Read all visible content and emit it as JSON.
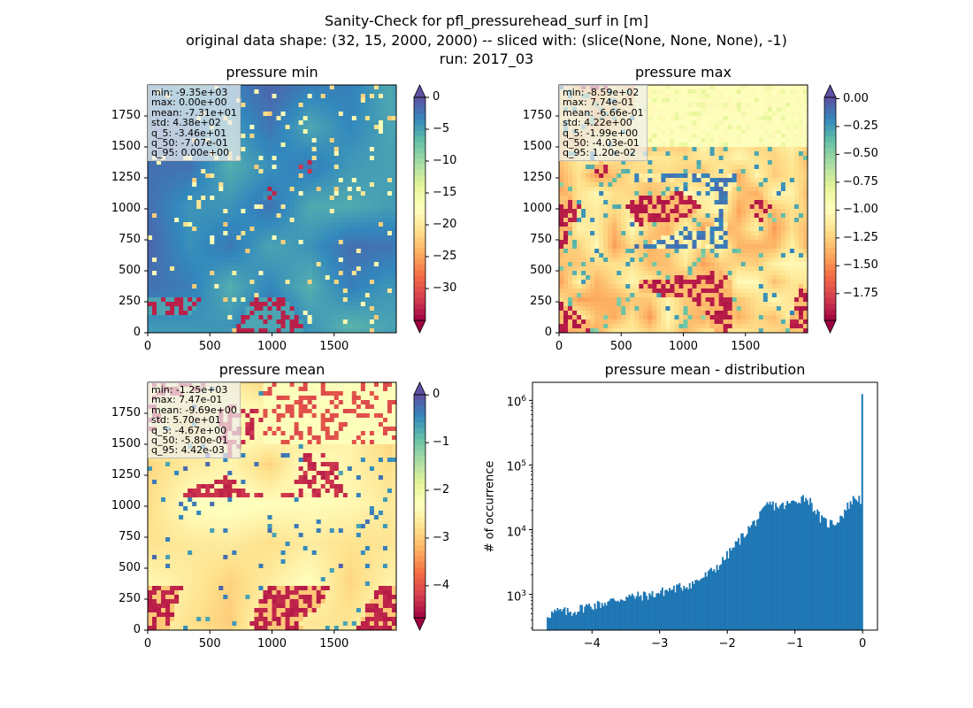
{
  "suptitle": {
    "line1": "Sanity-Check for pfl_pressurehead_surf in [m]",
    "line2": "original data shape: (32, 15, 2000, 2000) -- sliced with: (slice(None, None, None), -1)",
    "line3": "run: 2017_03"
  },
  "chart_data": [
    {
      "type": "heatmap",
      "title": "pressure min",
      "colormap": "Spectral",
      "xticks": [
        "0",
        "500",
        "1000",
        "1500"
      ],
      "yticks": [
        "0",
        "250",
        "500",
        "750",
        "1000",
        "1250",
        "1500",
        "1750"
      ],
      "xlim": [
        0,
        2000
      ],
      "ylim": [
        0,
        2000
      ],
      "colorbar": {
        "range": [
          -35,
          0
        ],
        "ticks": [
          "0",
          "−5",
          "−10",
          "−15",
          "−20",
          "−25",
          "−30"
        ],
        "extend": "both"
      },
      "stats": [
        "min: -9.35e+03",
        "max: 0.00e+00",
        "mean: -7.31e+01",
        "std: 4.38e+02",
        "q_5: -3.46e+01",
        "q_50: -7.07e-01",
        "q_95: 0.00e+00"
      ]
    },
    {
      "type": "heatmap",
      "title": "pressure max",
      "colormap": "Spectral",
      "xticks": [
        "0",
        "500",
        "1000",
        "1500"
      ],
      "yticks": [
        "0",
        "250",
        "500",
        "750",
        "1000",
        "1250",
        "1500",
        "1750"
      ],
      "xlim": [
        0,
        2000
      ],
      "ylim": [
        0,
        2000
      ],
      "colorbar": {
        "range": [
          -1.99,
          0.012
        ],
        "ticks": [
          "0.00",
          "−0.25",
          "−0.50",
          "−0.75",
          "−1.00",
          "−1.25",
          "−1.50",
          "−1.75"
        ],
        "extend": "both"
      },
      "stats": [
        "min: -8.59e+02",
        "max: 7.74e-01",
        "mean: -6.66e-01",
        "std: 4.22e+00",
        "q_5: -1.99e+00",
        "q_50: -4.03e-01",
        "q_95: 1.20e-02"
      ]
    },
    {
      "type": "heatmap",
      "title": "pressure mean",
      "colormap": "Spectral",
      "xticks": [
        "0",
        "500",
        "1000",
        "1500"
      ],
      "yticks": [
        "0",
        "250",
        "500",
        "750",
        "1000",
        "1250",
        "1500",
        "1750"
      ],
      "xlim": [
        0,
        2000
      ],
      "ylim": [
        0,
        2000
      ],
      "colorbar": {
        "range": [
          -4.67,
          0.0044
        ],
        "ticks": [
          "0",
          "−1",
          "−2",
          "−3",
          "−4"
        ],
        "extend": "both"
      },
      "stats": [
        "min: -1.25e+03",
        "max: 7.47e-01",
        "mean: -9.69e+00",
        "std: 5.70e+01",
        "q_5: -4.67e+00",
        "q_50: -5.80e-01",
        "q_95: 4.42e-03"
      ]
    },
    {
      "type": "bar",
      "title": "pressure mean - distribution",
      "ylabel": "# of occurrence",
      "yscale": "log",
      "color": "#1f77b4",
      "xlim": [
        -4.88,
        0.22
      ],
      "ylim": [
        280,
        1900000
      ],
      "xticks": [
        "−4",
        "−3",
        "−2",
        "−1",
        "0"
      ],
      "yticks": [
        "10^3",
        "10^4",
        "10^5",
        "10^6"
      ],
      "profile": {
        "x": [
          -4.67,
          -4.5,
          -4.3,
          -4.1,
          -3.9,
          -3.7,
          -3.5,
          -3.3,
          -3.1,
          -2.9,
          -2.7,
          -2.5,
          -2.3,
          -2.1,
          -1.9,
          -1.7,
          -1.5,
          -1.4,
          -1.2,
          -1.0,
          -0.9,
          -0.8,
          -0.7,
          -0.6,
          -0.5,
          -0.4,
          -0.3,
          -0.2,
          -0.1,
          -0.02
        ],
        "y": [
          480,
          550,
          530,
          650,
          700,
          800,
          900,
          950,
          1000,
          1150,
          1300,
          1500,
          2000,
          3000,
          5500,
          10000,
          17000,
          25000,
          23000,
          27000,
          32000,
          30000,
          20000,
          14000,
          12500,
          13000,
          17000,
          25000,
          32000,
          29000
        ]
      },
      "spike": {
        "x": -0.005,
        "y": 1250000
      }
    }
  ]
}
